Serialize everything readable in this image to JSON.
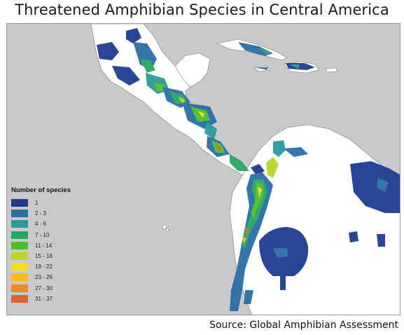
{
  "title": "Threatened Amphibian Species in Central America",
  "source": "Source: Global Amphibian Assessment",
  "legend": {
    "title": "Number of species",
    "items": [
      {
        "label": "1",
        "color": "#1f3c8f"
      },
      {
        "label": "2 - 3",
        "color": "#2a6ea6"
      },
      {
        "label": "4 - 6",
        "color": "#2a9a9a"
      },
      {
        "label": "7 - 10",
        "color": "#25a860"
      },
      {
        "label": "11 - 14",
        "color": "#4cbf2e"
      },
      {
        "label": "15 - 18",
        "color": "#b7d62a"
      },
      {
        "label": "19 - 22",
        "color": "#f2e01b"
      },
      {
        "label": "23 - 26",
        "color": "#f2b81e"
      },
      {
        "label": "27 - 30",
        "color": "#ef8a24"
      },
      {
        "label": "31 - 37",
        "color": "#e0603a"
      }
    ]
  },
  "colors": {
    "sea": "#c9c9c9",
    "land": "#ffffff",
    "border": "#666666"
  }
}
